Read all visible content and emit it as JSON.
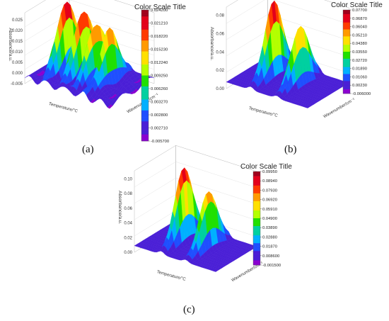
{
  "captions": [
    "(a)",
    "(b)",
    "(c)"
  ],
  "chart_data": [
    {
      "type": "surface3d",
      "panel": "(a)",
      "zlabel": "Absorbance/a.u.",
      "xlabel": "Temperature/°C",
      "ylabel": "Wavenumber/cm⁻¹",
      "zlim": [
        -0.005,
        0.025
      ],
      "z_ticks": [
        "0.025",
        "0.020",
        "0.015",
        "0.010",
        "0.005",
        "0.000",
        "-0.005"
      ],
      "colorbar": {
        "title": "Color Scale Title",
        "ticks": [
          "0.024200",
          "0.021210",
          "0.018220",
          "0.015230",
          "0.012240",
          "0.009250",
          "0.006260",
          "0.003270",
          "0.002800",
          "0.002710",
          "-0.005700"
        ]
      }
    },
    {
      "type": "surface3d",
      "panel": "(b)",
      "zlabel": "Absorbance/a.u.",
      "xlabel": "Temperature/°C",
      "ylabel": "Wavenumber/cm⁻¹",
      "zlim": [
        0.0,
        0.08
      ],
      "z_ticks": [
        "0.08",
        "0.06",
        "0.04",
        "0.02",
        "0.00"
      ],
      "colorbar": {
        "title": "Color Scale Title",
        "ticks": [
          "0.07700",
          "0.06870",
          "0.06040",
          "0.05210",
          "0.04380",
          "0.03550",
          "0.02720",
          "0.01890",
          "0.01060",
          "0.00230",
          "-0.006000"
        ]
      }
    },
    {
      "type": "surface3d",
      "panel": "(c)",
      "zlabel": "Absorbance/a.u.",
      "xlabel": "Temperature/°C",
      "ylabel": "Wavenumber/cm⁻¹",
      "zlim": [
        0.0,
        0.1
      ],
      "z_ticks": [
        "0.10",
        "0.08",
        "0.06",
        "0.04",
        "0.02",
        "0.00"
      ],
      "colorbar": {
        "title": "Color Scale Title",
        "ticks": [
          "0.09950",
          "0.08940",
          "0.07930",
          "0.06920",
          "0.05910",
          "0.04900",
          "0.03890",
          "0.02880",
          "0.01870",
          "0.008600",
          "-0.001500"
        ]
      }
    }
  ],
  "colors": {
    "scale": [
      "#a0001c",
      "#e3001b",
      "#ff3a00",
      "#ff9a00",
      "#ffe000",
      "#b4ff00",
      "#20e000",
      "#00d0a0",
      "#00b0ff",
      "#1f4fff",
      "#4a1fd6",
      "#8a00d0"
    ]
  }
}
